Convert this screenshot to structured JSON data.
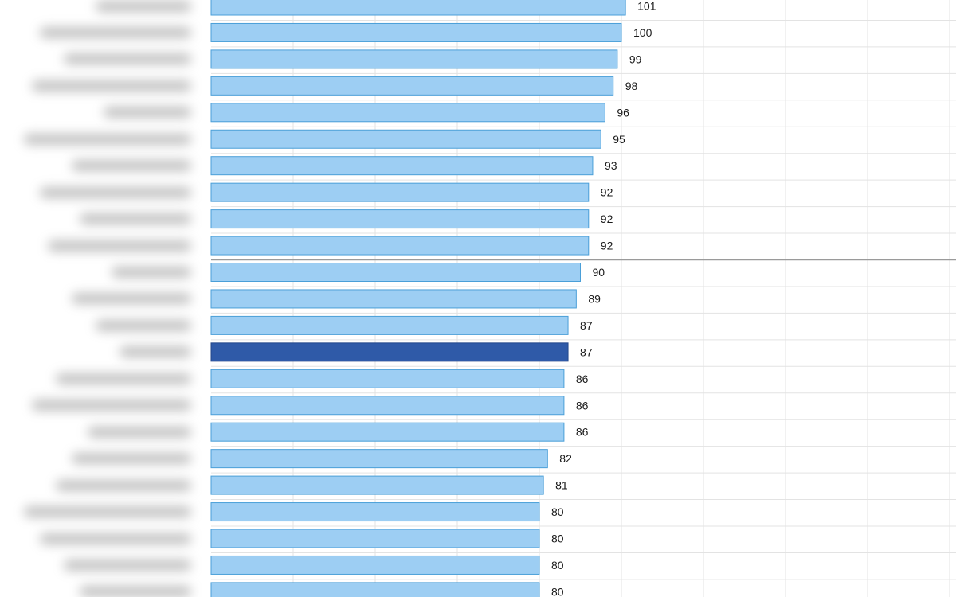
{
  "chart_data": {
    "type": "bar",
    "orientation": "horizontal",
    "title": "",
    "xlabel": "",
    "ylabel": "",
    "categories_visible": false,
    "values": [
      101,
      100,
      99,
      98,
      96,
      95,
      93,
      92,
      92,
      92,
      90,
      89,
      87,
      87,
      86,
      86,
      86,
      82,
      81,
      80,
      80,
      80,
      80
    ],
    "highlighted_index": 13,
    "xlim": [
      0,
      180
    ],
    "grid": true,
    "legend": "none",
    "reference_line_after_index": 9
  },
  "colors": {
    "bar_fill": "#9dcef3",
    "bar_stroke": "#4a9fd8",
    "highlight_fill": "#2f5aa8",
    "highlight_stroke": "#23478a",
    "grid": "#e3e3e3",
    "reference_line": "#9a9a9a",
    "label_text": "#1a1a1a"
  }
}
